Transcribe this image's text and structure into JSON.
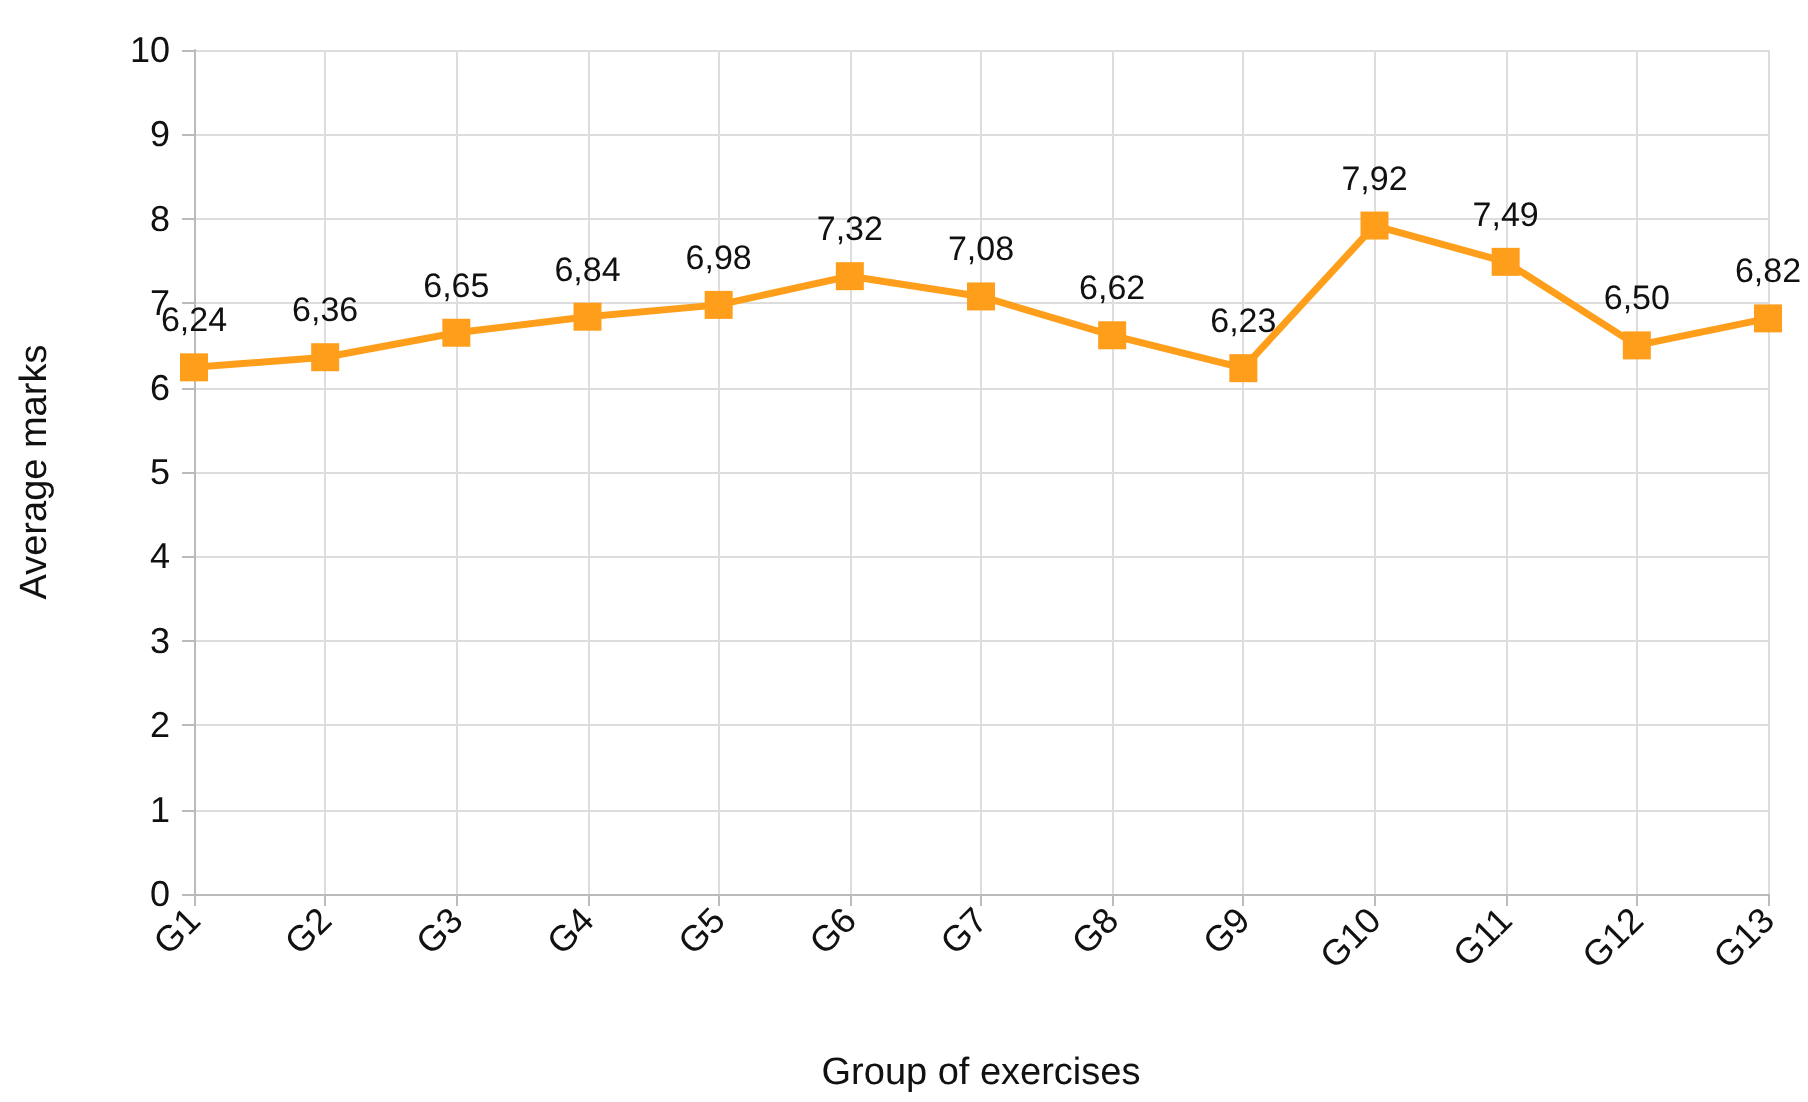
{
  "chart_data": {
    "type": "line",
    "xlabel": "Group of exercises",
    "ylabel": "Average marks",
    "categories": [
      "G1",
      "G2",
      "G3",
      "G4",
      "G5",
      "G6",
      "G7",
      "G8",
      "G9",
      "G10",
      "G11",
      "G12",
      "G13"
    ],
    "series": [
      {
        "color": "#ff9e1b",
        "values": [
          6.24,
          6.36,
          6.65,
          6.84,
          6.98,
          7.32,
          7.08,
          6.62,
          6.23,
          7.92,
          7.49,
          6.5,
          6.82
        ],
        "value_labels": [
          "6,24",
          "6,36",
          "6,65",
          "6,84",
          "6,98",
          "7,32",
          "7,08",
          "6,62",
          "6,23",
          "7,92",
          "7,49",
          "6,50",
          "6,82"
        ]
      }
    ],
    "ylim": [
      0,
      10
    ],
    "yticks": [
      0,
      1,
      2,
      3,
      4,
      5,
      6,
      7,
      8,
      9,
      10
    ],
    "grid": true,
    "marker": "square",
    "line_style": "solid"
  }
}
